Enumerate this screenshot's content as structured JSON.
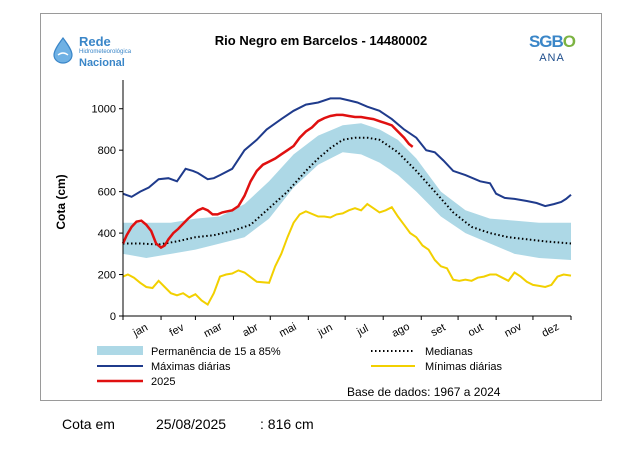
{
  "logos": {
    "left": {
      "line1": "Rede",
      "line2": "Hidrometeorológica",
      "line3": "Nacional"
    },
    "right": {
      "line1": "SGB",
      "line1b": "O",
      "line2": "ANA"
    }
  },
  "footer": {
    "label": "Cota em",
    "date": "25/08/2025",
    "value": ": 816 cm"
  },
  "colors": {
    "band": "#add8e6",
    "max": "#1f3b8c",
    "median": "#000000",
    "min": "#f2d000",
    "current": "#e01010"
  },
  "chart_data": {
    "type": "line",
    "title": "Rio Negro em Barcelos - 14480002",
    "xlabel": "",
    "ylabel": "Cota (cm)",
    "ylim": [
      0,
      1100
    ],
    "yticks": [
      0,
      200,
      400,
      600,
      800,
      1000
    ],
    "xlim": [
      1,
      366
    ],
    "month_labels": [
      "jan",
      "fev",
      "mar",
      "abr",
      "mai",
      "jun",
      "jul",
      "ago",
      "set",
      "out",
      "nov",
      "dez"
    ],
    "grid": false,
    "legend_position": "bottom",
    "note": "Base de dados: 1967 a 2024",
    "series": [
      {
        "name": "Permanência de 15 a 85%",
        "kind": "band",
        "x": [
          1,
          20,
          40,
          60,
          80,
          100,
          120,
          140,
          160,
          180,
          195,
          210,
          225,
          240,
          260,
          280,
          300,
          320,
          340,
          366
        ],
        "low": [
          300,
          280,
          300,
          320,
          350,
          380,
          470,
          620,
          730,
          790,
          780,
          740,
          680,
          600,
          480,
          400,
          350,
          300,
          280,
          270
        ],
        "high": [
          450,
          450,
          450,
          470,
          480,
          540,
          650,
          780,
          870,
          920,
          930,
          900,
          850,
          760,
          600,
          510,
          470,
          460,
          450,
          450
        ]
      },
      {
        "name": "Máximas diárias",
        "kind": "line",
        "x": [
          1,
          8,
          15,
          22,
          30,
          38,
          45,
          52,
          58,
          62,
          70,
          75,
          80,
          90,
          100,
          110,
          118,
          130,
          140,
          150,
          160,
          170,
          178,
          185,
          192,
          200,
          210,
          220,
          230,
          240,
          248,
          255,
          262,
          270,
          280,
          292,
          300,
          305,
          312,
          320,
          330,
          338,
          345,
          352,
          358,
          362,
          366
        ],
        "y": [
          590,
          575,
          600,
          620,
          660,
          665,
          650,
          710,
          700,
          690,
          660,
          665,
          680,
          710,
          800,
          850,
          900,
          950,
          990,
          1020,
          1030,
          1050,
          1050,
          1040,
          1030,
          1010,
          990,
          950,
          900,
          860,
          800,
          790,
          750,
          700,
          680,
          650,
          640,
          590,
          570,
          565,
          555,
          545,
          530,
          540,
          550,
          565,
          585
        ]
      },
      {
        "name": "Medianas",
        "kind": "dotted",
        "x": [
          1,
          15,
          30,
          45,
          60,
          75,
          90,
          105,
          120,
          135,
          150,
          160,
          170,
          180,
          190,
          200,
          210,
          225,
          240,
          255,
          270,
          285,
          300,
          315,
          330,
          345,
          366
        ],
        "y": [
          350,
          350,
          345,
          360,
          380,
          390,
          410,
          440,
          520,
          600,
          700,
          760,
          810,
          850,
          860,
          860,
          850,
          790,
          700,
          600,
          500,
          430,
          400,
          380,
          370,
          360,
          350
        ]
      },
      {
        "name": "Mínimas diárias",
        "kind": "line",
        "x": [
          1,
          5,
          10,
          15,
          20,
          25,
          30,
          35,
          40,
          45,
          50,
          55,
          60,
          65,
          70,
          75,
          80,
          85,
          90,
          95,
          100,
          110,
          120,
          125,
          130,
          135,
          140,
          145,
          150,
          160,
          165,
          170,
          175,
          180,
          185,
          190,
          195,
          200,
          205,
          210,
          215,
          220,
          225,
          230,
          235,
          240,
          245,
          250,
          255,
          260,
          265,
          270,
          275,
          280,
          285,
          290,
          295,
          300,
          305,
          310,
          315,
          320,
          325,
          330,
          335,
          340,
          345,
          350,
          355,
          360,
          366
        ],
        "y": [
          190,
          200,
          185,
          160,
          140,
          135,
          170,
          140,
          110,
          100,
          110,
          90,
          105,
          75,
          55,
          110,
          190,
          200,
          205,
          220,
          210,
          165,
          160,
          240,
          300,
          380,
          450,
          490,
          505,
          480,
          480,
          475,
          490,
          495,
          510,
          520,
          510,
          540,
          520,
          500,
          510,
          525,
          480,
          440,
          400,
          380,
          340,
          320,
          270,
          240,
          230,
          175,
          170,
          175,
          170,
          185,
          190,
          200,
          200,
          185,
          170,
          210,
          190,
          165,
          150,
          145,
          140,
          150,
          190,
          200,
          195
        ]
      },
      {
        "name": "2025",
        "kind": "line",
        "x": [
          1,
          4,
          8,
          12,
          16,
          20,
          24,
          28,
          32,
          35,
          38,
          42,
          46,
          50,
          54,
          58,
          62,
          66,
          70,
          74,
          78,
          82,
          86,
          90,
          95,
          100,
          105,
          110,
          115,
          120,
          125,
          130,
          135,
          140,
          145,
          150,
          155,
          160,
          165,
          170,
          175,
          180,
          185,
          190,
          195,
          200,
          205,
          210,
          215,
          220,
          225,
          230,
          234,
          237
        ],
        "y": [
          350,
          390,
          430,
          455,
          460,
          440,
          410,
          350,
          330,
          340,
          370,
          400,
          420,
          445,
          470,
          490,
          510,
          520,
          510,
          490,
          490,
          500,
          505,
          510,
          530,
          580,
          650,
          700,
          730,
          745,
          760,
          780,
          800,
          820,
          860,
          890,
          910,
          940,
          955,
          965,
          970,
          970,
          965,
          960,
          960,
          955,
          950,
          940,
          930,
          920,
          890,
          860,
          830,
          816
        ]
      }
    ]
  }
}
